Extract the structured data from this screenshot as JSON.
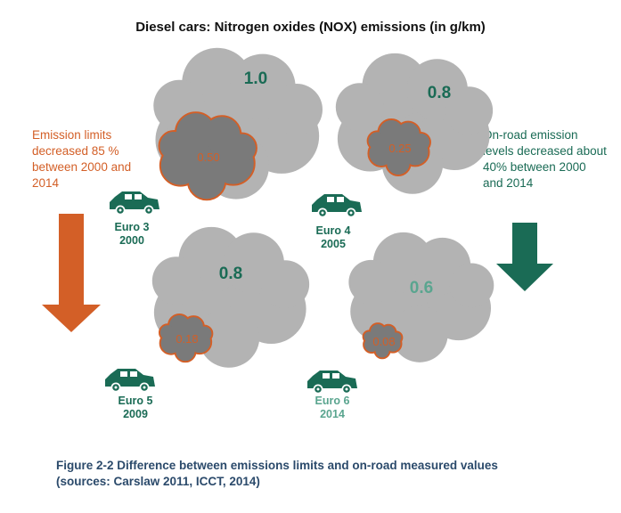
{
  "chart_data": {
    "type": "infographic",
    "title": "Diesel cars: Nitrogen oxides (NOX) emissions (in g/km)",
    "series": [
      {
        "name": "Emission limits",
        "values": [
          0.5,
          0.25,
          0.18,
          0.08
        ]
      },
      {
        "name": "On-road emission",
        "values": [
          1.0,
          0.8,
          0.8,
          0.6
        ]
      }
    ],
    "categories": [
      {
        "standard": "Euro 3",
        "year": "2000"
      },
      {
        "standard": "Euro 4",
        "year": "2005"
      },
      {
        "standard": "Euro 5",
        "year": "2009"
      },
      {
        "standard": "Euro 6",
        "year": "2014"
      }
    ],
    "limit_labels": [
      "0.50",
      "0.25",
      "0.18",
      "0.08"
    ],
    "onroad_labels": [
      "1.0",
      "0.8",
      "0.8",
      "0.6"
    ],
    "annotations": {
      "left": "Emission limits decreased 85 % between 2000 and 2014",
      "right": "On-road emission levels decreased about 40% between 2000 and 2014"
    }
  },
  "caption": {
    "line1": "Figure 2-2  Difference between emissions limits and on-road measured values",
    "line2": "(sources: Carslaw 2011, ICCT, 2014)"
  },
  "colors": {
    "orange": "#d35f27",
    "green": "#1a6b55",
    "light_green": "#5aa58f",
    "cloud_grey": "#b3b3b3",
    "limit_grey": "#7a7a7a"
  },
  "icons": [
    "car-icon",
    "down-arrow-icon",
    "smoke-cloud-icon"
  ]
}
